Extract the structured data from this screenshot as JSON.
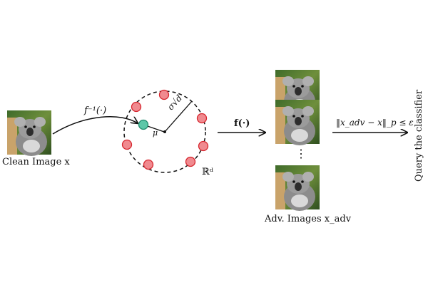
{
  "labels": {
    "clean_image": "Clean Image x",
    "inverse_map": "f⁻¹(·)",
    "forward_map": "f(·)",
    "latent_space": "ℝᵈ",
    "radius": "σ√d",
    "mean": "μ",
    "adv_images": "Adv. Images x_adv",
    "constraint": "‖x_adv − x‖_p ≤ ε",
    "query": "Query the classifier",
    "ellipsis": "⋮"
  },
  "colors": {
    "red_fill": "#f08a8f",
    "red_stroke": "#d6272f",
    "green_fill": "#5cc7a8",
    "green_stroke": "#1e8a6c",
    "stroke": "#111111"
  }
}
